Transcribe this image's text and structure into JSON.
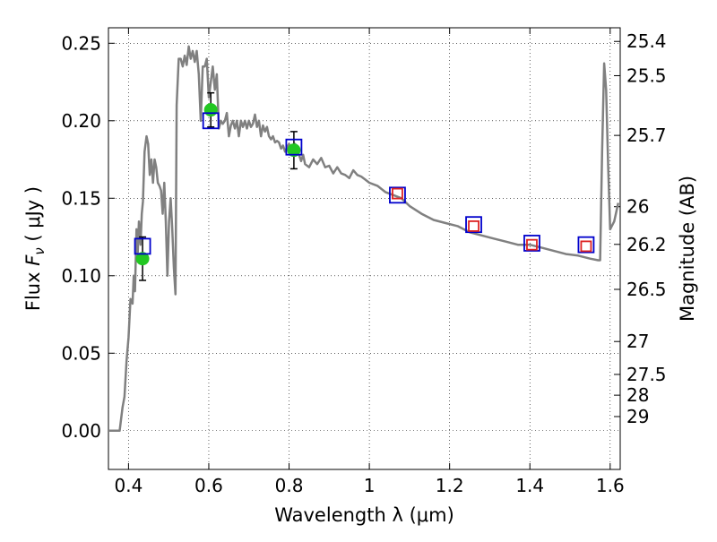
{
  "chart_data": {
    "type": "line",
    "title": "",
    "xlabel": "Wavelength  λ (μm)",
    "ylabel": "Flux  F_ν  ( μJy )",
    "ylabel_parts": {
      "prefix": "Flux  ",
      "sym": "F",
      "sub": "ν",
      "suffix": "  ( μJy )"
    },
    "y2label": "Magnitude (AB)",
    "xlim": [
      0.35,
      1.625
    ],
    "ylim": [
      -0.025,
      0.26
    ],
    "grid": true,
    "x_ticks": [
      0.4,
      0.6,
      0.8,
      1.0,
      1.2,
      1.4,
      1.6
    ],
    "x_tick_labels": [
      "0.4",
      "0.6",
      "0.8",
      "1",
      "1.2",
      "1.4",
      "1.6"
    ],
    "y_ticks": [
      0.0,
      0.05,
      0.1,
      0.15,
      0.2,
      0.25
    ],
    "y_tick_labels": [
      "0.00",
      "0.05",
      "0.10",
      "0.15",
      "0.20",
      "0.25"
    ],
    "mag_ticks": [
      25.4,
      25.5,
      25.7,
      26,
      26.2,
      26.5,
      27,
      27.5,
      28,
      29
    ],
    "mag_tick_labels": [
      "25.4",
      "25.5",
      "25.7",
      "26",
      "26.2",
      "26.5",
      "27",
      "27.5",
      "28",
      "29"
    ],
    "series": [
      {
        "type": "line",
        "color": "#808080",
        "x": [
          0.35,
          0.378,
          0.385,
          0.39,
          0.395,
          0.4,
          0.405,
          0.41,
          0.413,
          0.416,
          0.42,
          0.423,
          0.426,
          0.43,
          0.433,
          0.436,
          0.44,
          0.445,
          0.449,
          0.453,
          0.457,
          0.461,
          0.465,
          0.469,
          0.473,
          0.477,
          0.481,
          0.485,
          0.489,
          0.493,
          0.497,
          0.501,
          0.505,
          0.509,
          0.513,
          0.517,
          0.52,
          0.525,
          0.53,
          0.535,
          0.54,
          0.545,
          0.55,
          0.555,
          0.56,
          0.565,
          0.57,
          0.575,
          0.58,
          0.585,
          0.59,
          0.595,
          0.6,
          0.605,
          0.61,
          0.615,
          0.62,
          0.625,
          0.63,
          0.635,
          0.64,
          0.645,
          0.65,
          0.655,
          0.66,
          0.665,
          0.67,
          0.675,
          0.68,
          0.685,
          0.69,
          0.695,
          0.7,
          0.705,
          0.71,
          0.715,
          0.72,
          0.725,
          0.73,
          0.735,
          0.74,
          0.745,
          0.75,
          0.755,
          0.76,
          0.765,
          0.77,
          0.775,
          0.78,
          0.785,
          0.79,
          0.795,
          0.8,
          0.805,
          0.81,
          0.815,
          0.82,
          0.825,
          0.83,
          0.835,
          0.84,
          0.85,
          0.86,
          0.87,
          0.88,
          0.89,
          0.9,
          0.91,
          0.92,
          0.93,
          0.94,
          0.95,
          0.96,
          0.97,
          0.98,
          0.99,
          1.0,
          1.02,
          1.04,
          1.06,
          1.08,
          1.1,
          1.13,
          1.16,
          1.19,
          1.22,
          1.25,
          1.28,
          1.31,
          1.34,
          1.37,
          1.4,
          1.43,
          1.46,
          1.49,
          1.52,
          1.55,
          1.57,
          1.575,
          1.58,
          1.585,
          1.59,
          1.595,
          1.6,
          1.61,
          1.62
        ],
        "y": [
          0.0,
          0.0,
          0.015,
          0.022,
          0.045,
          0.06,
          0.085,
          0.082,
          0.1,
          0.09,
          0.13,
          0.115,
          0.135,
          0.12,
          0.14,
          0.148,
          0.18,
          0.19,
          0.185,
          0.165,
          0.175,
          0.16,
          0.175,
          0.17,
          0.16,
          0.158,
          0.155,
          0.14,
          0.16,
          0.135,
          0.1,
          0.135,
          0.15,
          0.13,
          0.105,
          0.088,
          0.21,
          0.24,
          0.24,
          0.235,
          0.242,
          0.236,
          0.248,
          0.24,
          0.245,
          0.238,
          0.245,
          0.23,
          0.2,
          0.235,
          0.235,
          0.24,
          0.215,
          0.225,
          0.235,
          0.22,
          0.23,
          0.195,
          0.2,
          0.198,
          0.2,
          0.205,
          0.19,
          0.197,
          0.2,
          0.195,
          0.2,
          0.19,
          0.2,
          0.196,
          0.2,
          0.195,
          0.2,
          0.196,
          0.198,
          0.204,
          0.196,
          0.2,
          0.19,
          0.197,
          0.193,
          0.196,
          0.19,
          0.188,
          0.19,
          0.186,
          0.187,
          0.186,
          0.182,
          0.184,
          0.18,
          0.183,
          0.185,
          0.182,
          0.183,
          0.185,
          0.18,
          0.178,
          0.174,
          0.178,
          0.172,
          0.17,
          0.175,
          0.172,
          0.176,
          0.17,
          0.171,
          0.166,
          0.17,
          0.166,
          0.165,
          0.163,
          0.168,
          0.165,
          0.164,
          0.162,
          0.16,
          0.158,
          0.154,
          0.152,
          0.15,
          0.145,
          0.14,
          0.136,
          0.134,
          0.132,
          0.128,
          0.126,
          0.124,
          0.122,
          0.12,
          0.12,
          0.118,
          0.116,
          0.114,
          0.113,
          0.111,
          0.11,
          0.11,
          0.18,
          0.237,
          0.22,
          0.17,
          0.13,
          0.135,
          0.147
        ]
      },
      {
        "type": "scatter",
        "marker": "circle",
        "color": "#22c722",
        "x": [
          0.435,
          0.605,
          0.812
        ],
        "y": [
          0.111,
          0.207,
          0.181
        ],
        "yerr": [
          0.014,
          0.011,
          0.012
        ]
      },
      {
        "type": "scatter",
        "marker": "open-square",
        "color": "#0000cc",
        "x": [
          0.435,
          0.605,
          0.812,
          1.07,
          1.26,
          1.405,
          1.54
        ],
        "y": [
          0.119,
          0.2,
          0.183,
          0.152,
          0.133,
          0.121,
          0.12
        ]
      },
      {
        "type": "scatter",
        "marker": "open-square",
        "color": "#dd2222",
        "x": [
          1.07,
          1.26,
          1.405,
          1.54
        ],
        "y": [
          0.153,
          0.132,
          0.12,
          0.119
        ]
      }
    ]
  }
}
